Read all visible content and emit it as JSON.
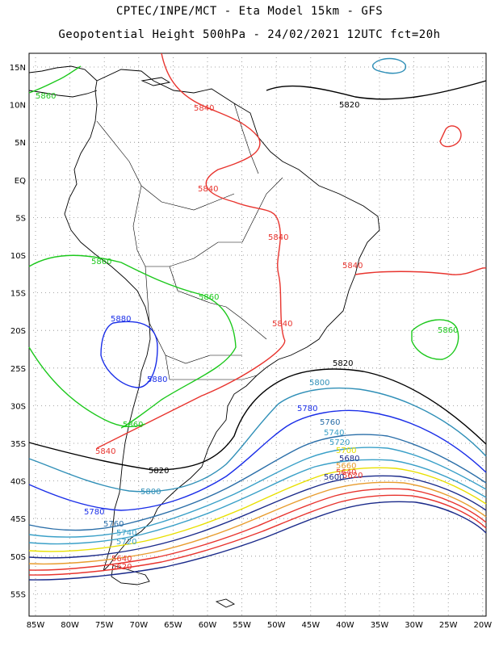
{
  "header": {
    "line1": "CPTEC/INPE/MCT -  Eta Model 15km - GFS",
    "line2": "Geopotential Height 500hPa - 24/02/2021 12UTC fct=20h"
  },
  "axes": {
    "lat_labels": [
      "15N",
      "10N",
      "5N",
      "EQ",
      "5S",
      "10S",
      "15S",
      "20S",
      "25S",
      "30S",
      "35S",
      "40S",
      "45S",
      "50S",
      "55S"
    ],
    "lon_labels": [
      "85W",
      "80W",
      "75W",
      "70W",
      "65W",
      "60W",
      "55W",
      "50W",
      "45W",
      "40W",
      "35W",
      "30W",
      "25W",
      "20W"
    ]
  },
  "contour_labels": [
    {
      "id": "c5860-nw",
      "text": "5860",
      "color": "#1cc81c"
    },
    {
      "id": "c5820-n",
      "text": "5820",
      "color": "#000000"
    },
    {
      "id": "c5840-n",
      "text": "5840",
      "color": "#e8342e"
    },
    {
      "id": "c5840-amz",
      "text": "5840",
      "color": "#e8342e"
    },
    {
      "id": "c5840-c",
      "text": "5840",
      "color": "#e8342e"
    },
    {
      "id": "c5840-e",
      "text": "5840",
      "color": "#e8342e"
    },
    {
      "id": "c5860-w",
      "text": "5860",
      "color": "#1cc81c"
    },
    {
      "id": "c5860-c",
      "text": "5860",
      "color": "#1cc81c"
    },
    {
      "id": "c5880-a",
      "text": "5880",
      "color": "#1a2ee8"
    },
    {
      "id": "c5880-b",
      "text": "5880",
      "color": "#1a2ee8"
    },
    {
      "id": "c5840-s",
      "text": "5840",
      "color": "#e8342e"
    },
    {
      "id": "c5860-atl",
      "text": "5860",
      "color": "#1cc81c"
    },
    {
      "id": "c5820-s",
      "text": "5820",
      "color": "#000000"
    },
    {
      "id": "c5800",
      "text": "5800",
      "color": "#2f8fb7"
    },
    {
      "id": "c5860-sw",
      "text": "5860",
      "color": "#1cc81c"
    },
    {
      "id": "c5840-sw",
      "text": "5840",
      "color": "#e8342e"
    },
    {
      "id": "c5820-sw",
      "text": "5820",
      "color": "#000000"
    },
    {
      "id": "c5800-w",
      "text": "5800",
      "color": "#2f8fb7"
    },
    {
      "id": "c5780",
      "text": "5780",
      "color": "#1a2ee8"
    },
    {
      "id": "c5780-w",
      "text": "5780",
      "color": "#1a2ee8"
    },
    {
      "id": "c5760",
      "text": "5760",
      "color": "#2a6ea8"
    },
    {
      "id": "c5760-w",
      "text": "5760",
      "color": "#2a6ea8"
    },
    {
      "id": "c5740",
      "text": "5740",
      "color": "#3aa0c8"
    },
    {
      "id": "c5740-w",
      "text": "5740",
      "color": "#3aa0c8"
    },
    {
      "id": "c5720",
      "text": "5720",
      "color": "#3aa0c8"
    },
    {
      "id": "c5720-w",
      "text": "5720",
      "color": "#3aa0c8"
    },
    {
      "id": "c5700",
      "text": "5700",
      "color": "#e8e000"
    },
    {
      "id": "c5680",
      "text": "5680",
      "color": "#1a2a8a"
    },
    {
      "id": "c5660",
      "text": "5660",
      "color": "#e89c2e"
    },
    {
      "id": "c5640",
      "text": "5640",
      "color": "#e8342e"
    },
    {
      "id": "c5620",
      "text": "5620",
      "color": "#e8342e"
    },
    {
      "id": "c5600",
      "text": "5600",
      "color": "#1a2a8a"
    },
    {
      "id": "c5640-w",
      "text": "5640",
      "color": "#e8342e"
    },
    {
      "id": "c5620-w",
      "text": "5620",
      "color": "#e8342e"
    }
  ]
}
